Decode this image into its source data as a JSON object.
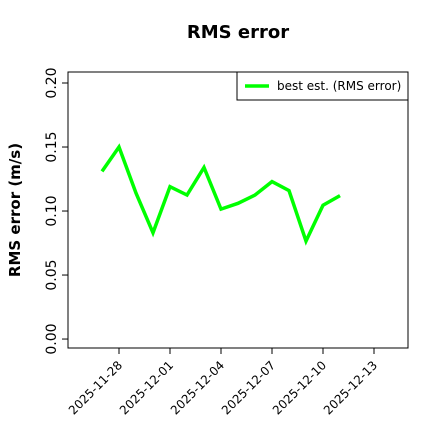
{
  "chart_data": {
    "type": "line",
    "title": "RMS error",
    "y_label": "RMS error (m/s)",
    "x": [
      "2025-11-27",
      "2025-11-28",
      "2025-11-29",
      "2025-11-30",
      "2025-12-01",
      "2025-12-02",
      "2025-12-03",
      "2025-12-04",
      "2025-12-05",
      "2025-12-06",
      "2025-12-07",
      "2025-12-08",
      "2025-12-09",
      "2025-12-10",
      "2025-12-11"
    ],
    "series": [
      {
        "name": "best est. (RMS error)",
        "color": "#00ff00",
        "values": [
          0.131,
          0.15,
          0.114,
          0.083,
          0.119,
          0.1125,
          0.134,
          0.1015,
          0.106,
          0.1125,
          0.123,
          0.116,
          0.0765,
          0.1045,
          0.112
        ]
      }
    ],
    "xlim": [
      "2025-11-25",
      "2025-12-15"
    ],
    "xticks": [
      "2025-11-28",
      "2025-12-01",
      "2025-12-04",
      "2025-12-07",
      "2025-12-10",
      "2025-12-13"
    ],
    "xtick_label_colors": [
      "#000000",
      "#000000",
      "#228b22",
      "#000000",
      "#000000",
      "#000000"
    ],
    "ylim": [
      -0.007,
      0.2086
    ],
    "yticks": [
      {
        "value": 0,
        "label": "0.00"
      },
      {
        "value": 0.05,
        "label": "0.05"
      },
      {
        "value": 0.1,
        "label": "0.10"
      },
      {
        "value": 0.15,
        "label": "0.15"
      },
      {
        "value": 0.2,
        "label": "0.20"
      }
    ],
    "legend": "upper right"
  }
}
